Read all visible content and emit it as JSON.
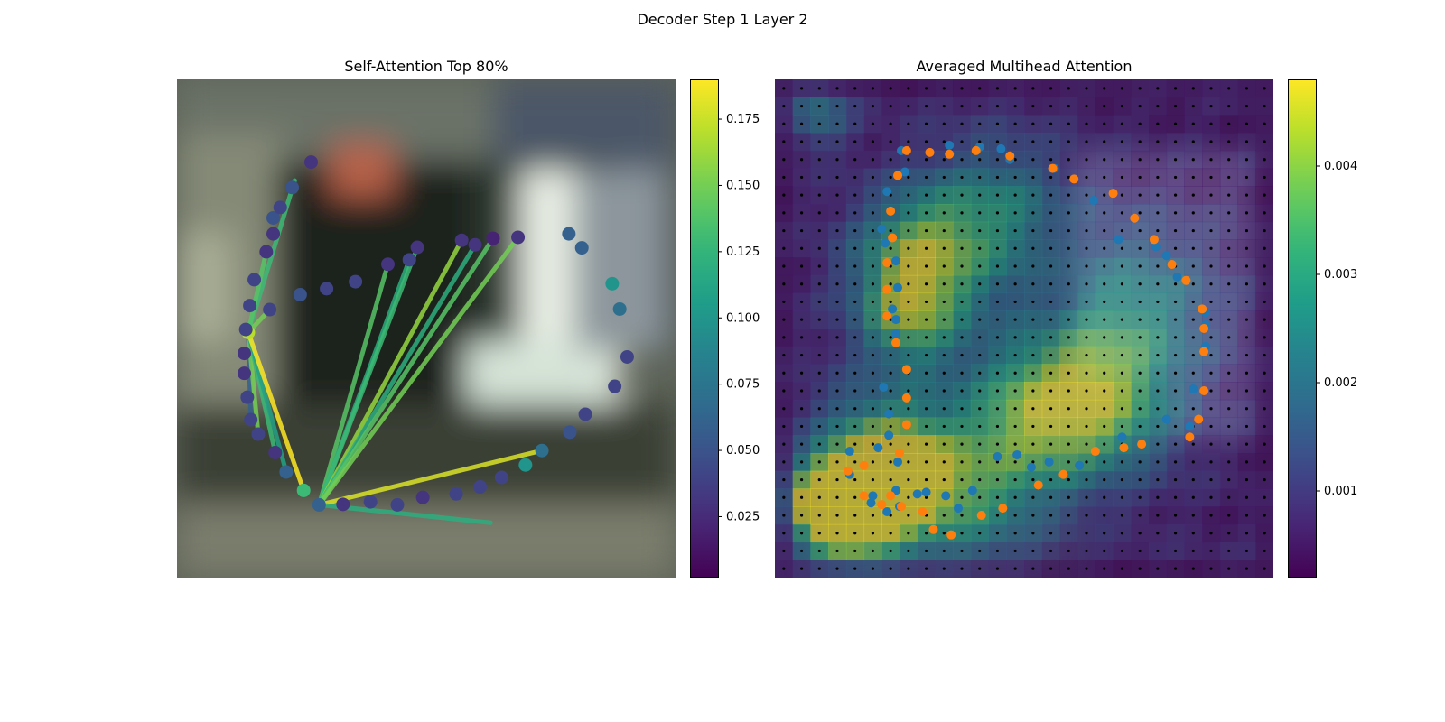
{
  "figure": {
    "title": "Decoder Step 1 Layer 2"
  },
  "chart_data": [
    {
      "type": "scatter",
      "title": "Self-Attention Top 80%",
      "colorbar": {
        "colormap": "viridis",
        "range": [
          0.002,
          0.19
        ],
        "ticks": [
          "0.025",
          "0.050",
          "0.075",
          "0.100",
          "0.125",
          "0.150",
          "0.175"
        ]
      },
      "points": [
        [
          14.3,
          50.8,
          0.17
        ],
        [
          18.6,
          46.2,
          0.04
        ],
        [
          24.7,
          43.2,
          0.05
        ],
        [
          30.0,
          42.0,
          0.04
        ],
        [
          35.8,
          40.6,
          0.04
        ],
        [
          42.3,
          37.1,
          0.03
        ],
        [
          46.6,
          36.2,
          0.04
        ],
        [
          48.2,
          33.7,
          0.03
        ],
        [
          57.1,
          32.3,
          0.03
        ],
        [
          59.8,
          33.2,
          0.03
        ],
        [
          63.4,
          31.9,
          0.02
        ],
        [
          68.4,
          31.7,
          0.03
        ],
        [
          78.6,
          31.0,
          0.06
        ],
        [
          81.2,
          33.8,
          0.06
        ],
        [
          87.3,
          41.0,
          0.1
        ],
        [
          88.8,
          46.1,
          0.07
        ],
        [
          90.3,
          55.7,
          0.04
        ],
        [
          87.8,
          61.6,
          0.04
        ],
        [
          81.9,
          67.2,
          0.04
        ],
        [
          78.8,
          70.8,
          0.05
        ],
        [
          73.2,
          74.5,
          0.07
        ],
        [
          69.9,
          77.4,
          0.1
        ],
        [
          65.1,
          79.9,
          0.04
        ],
        [
          60.8,
          81.8,
          0.04
        ],
        [
          56.0,
          83.2,
          0.04
        ],
        [
          49.3,
          83.9,
          0.03
        ],
        [
          44.2,
          85.4,
          0.04
        ],
        [
          38.8,
          84.8,
          0.04
        ],
        [
          33.3,
          85.3,
          0.03
        ],
        [
          28.5,
          85.4,
          0.06
        ],
        [
          25.4,
          82.5,
          0.13
        ],
        [
          21.9,
          78.8,
          0.06
        ],
        [
          19.7,
          74.9,
          0.03
        ],
        [
          16.3,
          71.2,
          0.04
        ],
        [
          14.8,
          68.3,
          0.04
        ],
        [
          14.1,
          63.8,
          0.04
        ],
        [
          13.5,
          59.0,
          0.03
        ],
        [
          13.5,
          55.0,
          0.03
        ],
        [
          13.8,
          50.2,
          0.04
        ],
        [
          14.6,
          45.4,
          0.04
        ],
        [
          15.5,
          40.2,
          0.04
        ],
        [
          17.9,
          34.6,
          0.03
        ],
        [
          19.3,
          31.0,
          0.03
        ],
        [
          19.3,
          27.8,
          0.05
        ],
        [
          20.7,
          25.7,
          0.04
        ],
        [
          23.1,
          21.7,
          0.05
        ],
        [
          26.9,
          16.6,
          0.03
        ]
      ],
      "links": [
        [
          14.3,
          50.8,
          23.6,
          20.3,
          0.13
        ],
        [
          14.3,
          50.8,
          18.6,
          46.2,
          0.15
        ],
        [
          14.3,
          50.8,
          14.8,
          68.3,
          0.06
        ],
        [
          14.3,
          50.8,
          16.3,
          71.2,
          0.15
        ],
        [
          14.3,
          50.8,
          19.7,
          74.9,
          0.13
        ],
        [
          14.3,
          50.8,
          21.9,
          78.8,
          0.11
        ],
        [
          14.3,
          50.8,
          25.4,
          82.5,
          0.19
        ],
        [
          28.5,
          85.4,
          42.3,
          37.1,
          0.14
        ],
        [
          28.5,
          85.4,
          46.6,
          36.2,
          0.12
        ],
        [
          28.5,
          85.4,
          48.2,
          33.7,
          0.13
        ],
        [
          28.5,
          85.4,
          57.1,
          32.3,
          0.16
        ],
        [
          28.5,
          85.4,
          59.8,
          33.2,
          0.12
        ],
        [
          28.5,
          85.4,
          63.4,
          31.9,
          0.14
        ],
        [
          28.5,
          85.4,
          68.4,
          31.7,
          0.15
        ],
        [
          28.5,
          85.4,
          73.2,
          74.5,
          0.18
        ],
        [
          28.5,
          85.4,
          62.9,
          89.0,
          0.12
        ],
        [
          14.3,
          50.8,
          17.9,
          34.6,
          0.14
        ]
      ]
    },
    {
      "type": "heatmap",
      "title": "Averaged Multihead Attention",
      "colorbar": {
        "colormap": "viridis",
        "range": [
          0.0002,
          0.0048
        ],
        "ticks": [
          "0.001",
          "0.002",
          "0.003",
          "0.004"
        ]
      },
      "grid_size": 28,
      "orange_points": [
        [
          4.1,
          22.0
        ],
        [
          5.0,
          21.7
        ],
        [
          5.0,
          23.4
        ],
        [
          6.0,
          23.9
        ],
        [
          7.1,
          24.0
        ],
        [
          8.3,
          24.3
        ],
        [
          8.9,
          25.3
        ],
        [
          9.9,
          25.6
        ],
        [
          11.6,
          24.5
        ],
        [
          12.8,
          24.1
        ],
        [
          14.8,
          22.8
        ],
        [
          16.2,
          22.2
        ],
        [
          18.0,
          20.9
        ],
        [
          19.6,
          20.7
        ],
        [
          20.6,
          20.5
        ],
        [
          23.3,
          20.1
        ],
        [
          23.8,
          19.1
        ],
        [
          24.1,
          17.5
        ],
        [
          24.1,
          15.3
        ],
        [
          24.1,
          14.0
        ],
        [
          24.0,
          12.9
        ],
        [
          23.1,
          11.3
        ],
        [
          22.3,
          10.4
        ],
        [
          21.3,
          9.0
        ],
        [
          20.2,
          7.8
        ],
        [
          19.0,
          6.4
        ],
        [
          16.8,
          5.6
        ],
        [
          15.6,
          5.0
        ],
        [
          13.2,
          4.3
        ],
        [
          11.3,
          4.0
        ],
        [
          9.8,
          4.2
        ],
        [
          8.7,
          4.1
        ],
        [
          7.4,
          4.0
        ],
        [
          6.9,
          5.4
        ],
        [
          6.5,
          7.4
        ],
        [
          6.6,
          8.9
        ],
        [
          6.3,
          10.3
        ],
        [
          6.3,
          11.8
        ],
        [
          6.3,
          13.3
        ],
        [
          6.8,
          14.8
        ],
        [
          7.4,
          16.3
        ],
        [
          7.4,
          17.9
        ],
        [
          7.4,
          19.4
        ],
        [
          7.0,
          21.0
        ],
        [
          6.5,
          23.4
        ]
      ],
      "blue_points": [
        [
          4.2,
          20.9
        ],
        [
          4.2,
          22.2
        ],
        [
          5.4,
          23.8
        ],
        [
          5.8,
          20.7
        ],
        [
          5.5,
          23.4
        ],
        [
          6.3,
          24.3
        ],
        [
          6.8,
          23.1
        ],
        [
          7.0,
          24.0
        ],
        [
          8.0,
          23.3
        ],
        [
          8.5,
          23.2
        ],
        [
          9.6,
          23.4
        ],
        [
          10.3,
          24.1
        ],
        [
          11.1,
          23.1
        ],
        [
          12.5,
          21.2
        ],
        [
          13.6,
          21.1
        ],
        [
          14.4,
          21.8
        ],
        [
          15.4,
          21.5
        ],
        [
          17.1,
          21.7
        ],
        [
          19.5,
          20.1
        ],
        [
          22.0,
          19.1
        ],
        [
          23.3,
          19.5
        ],
        [
          23.5,
          17.4
        ],
        [
          24.2,
          15.0
        ],
        [
          24.2,
          13.8
        ],
        [
          24.2,
          13.1
        ],
        [
          22.6,
          11.1
        ],
        [
          22.0,
          9.9
        ],
        [
          21.4,
          9.4
        ],
        [
          19.3,
          9.0
        ],
        [
          17.9,
          6.8
        ],
        [
          15.7,
          5.0
        ],
        [
          13.2,
          4.5
        ],
        [
          12.7,
          3.9
        ],
        [
          11.5,
          3.8
        ],
        [
          9.8,
          3.7
        ],
        [
          7.1,
          4.0
        ],
        [
          7.3,
          5.2
        ],
        [
          6.3,
          6.3
        ],
        [
          6.0,
          8.4
        ],
        [
          6.2,
          9.2
        ],
        [
          6.8,
          10.2
        ],
        [
          6.9,
          11.7
        ],
        [
          6.6,
          12.9
        ],
        [
          6.8,
          13.5
        ],
        [
          6.8,
          14.3
        ],
        [
          6.1,
          17.3
        ],
        [
          6.4,
          18.8
        ],
        [
          6.4,
          20.0
        ],
        [
          6.9,
          21.5
        ]
      ],
      "hotspots": [
        [
          2.5,
          23.3,
          1.5,
          1.0
        ],
        [
          4.0,
          24.0,
          2.0,
          0.95
        ],
        [
          6.5,
          22.0,
          2.0,
          0.6
        ],
        [
          7.5,
          9.5,
          2.5,
          0.7
        ],
        [
          7.0,
          13.0,
          2.0,
          0.55
        ],
        [
          14.5,
          18.0,
          3.0,
          0.6
        ],
        [
          18.0,
          17.5,
          3.0,
          0.55
        ],
        [
          10.0,
          22.5,
          3.0,
          0.55
        ],
        [
          5.0,
          20.0,
          2.5,
          0.5
        ],
        [
          20.0,
          12.0,
          3.0,
          0.4
        ],
        [
          12.0,
          7.0,
          3.0,
          0.45
        ],
        [
          2.0,
          1.5,
          1.2,
          0.4
        ]
      ]
    }
  ]
}
